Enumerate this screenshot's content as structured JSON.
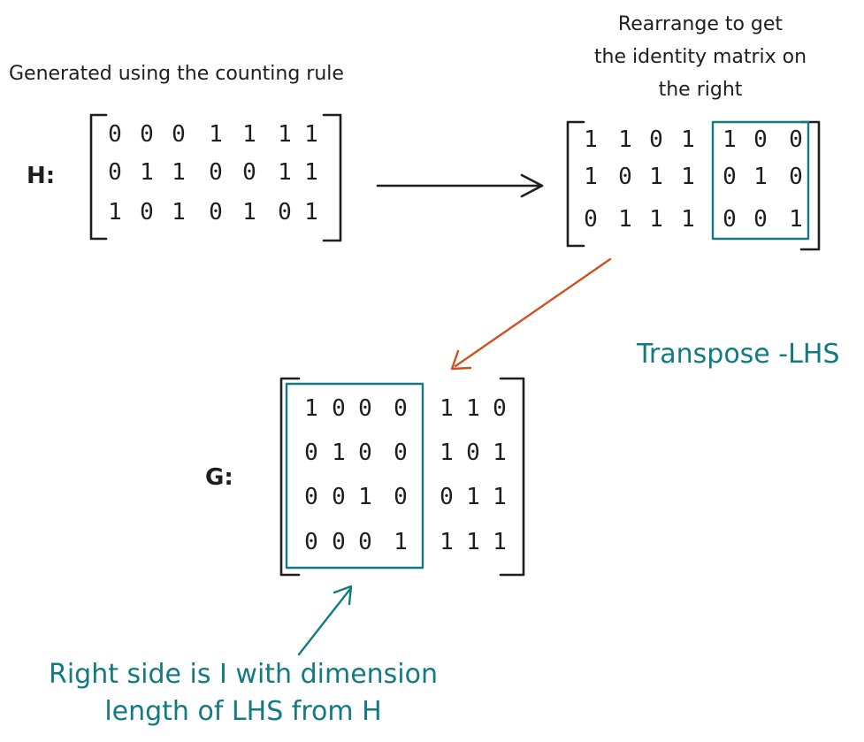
{
  "labels": {
    "generated_caption": "Generated using the counting rule",
    "rearrange_caption": [
      "Rearrange to get",
      "the identity matrix on",
      "the right"
    ],
    "transpose_note": "Transpose -LHS",
    "bottom_note": [
      "Right side is I with dimension",
      "length of LHS from H"
    ],
    "h_label": "H:",
    "g_label": "G:"
  },
  "matrices": {
    "h": [
      [
        "0",
        "0",
        "0",
        "1",
        "1",
        "1",
        "1"
      ],
      [
        "0",
        "1",
        "1",
        "0",
        "0",
        "1",
        "1"
      ],
      [
        "1",
        "0",
        "1",
        "0",
        "1",
        "0",
        "1"
      ]
    ],
    "h_rearranged": [
      [
        "1",
        "1",
        "0",
        "1",
        "1",
        "0",
        "0"
      ],
      [
        "1",
        "0",
        "1",
        "1",
        "0",
        "1",
        "0"
      ],
      [
        "0",
        "1",
        "1",
        "1",
        "0",
        "0",
        "1"
      ]
    ],
    "g": [
      [
        "1",
        "0",
        "0",
        "0",
        "1",
        "1",
        "0"
      ],
      [
        "0",
        "1",
        "0",
        "0",
        "1",
        "0",
        "1"
      ],
      [
        "0",
        "0",
        "1",
        "0",
        "0",
        "1",
        "1"
      ],
      [
        "0",
        "0",
        "0",
        "1",
        "1",
        "1",
        "1"
      ]
    ]
  },
  "colors": {
    "ink": "#1e1e1e",
    "teal": "#127a82",
    "orange": "#d2501e"
  }
}
